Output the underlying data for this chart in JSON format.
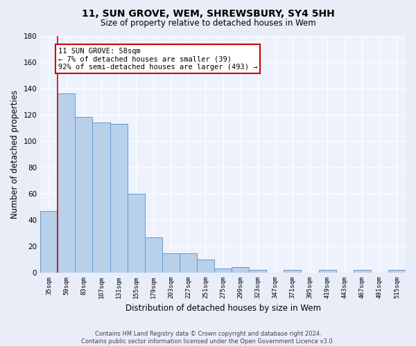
{
  "title1": "11, SUN GROVE, WEM, SHREWSBURY, SY4 5HH",
  "title2": "Size of property relative to detached houses in Wem",
  "xlabel": "Distribution of detached houses by size in Wem",
  "ylabel": "Number of detached properties",
  "bar_values": [
    47,
    136,
    118,
    114,
    113,
    60,
    27,
    15,
    15,
    10,
    3,
    4,
    2,
    0,
    2,
    0,
    2,
    0,
    2,
    0,
    2
  ],
  "categories": [
    "35sqm",
    "59sqm",
    "83sqm",
    "107sqm",
    "131sqm",
    "155sqm",
    "179sqm",
    "203sqm",
    "227sqm",
    "251sqm",
    "275sqm",
    "299sqm",
    "323sqm",
    "347sqm",
    "371sqm",
    "395sqm",
    "419sqm",
    "443sqm",
    "467sqm",
    "491sqm",
    "515sqm"
  ],
  "bar_color": "#b8d0ea",
  "bar_edge_color": "#6699cc",
  "vline_color": "#cc0000",
  "annotation_text": "11 SUN GROVE: 58sqm\n← 7% of detached houses are smaller (39)\n92% of semi-detached houses are larger (493) →",
  "annotation_box_color": "#ffffff",
  "annotation_box_edge_color": "#cc0000",
  "ylim": [
    0,
    180
  ],
  "yticks": [
    0,
    20,
    40,
    60,
    80,
    100,
    120,
    140,
    160,
    180
  ],
  "bg_color": "#e8edf8",
  "plot_bg_color": "#eef2fc",
  "grid_color": "#ffffff",
  "footnote": "Contains HM Land Registry data © Crown copyright and database right 2024.\nContains public sector information licensed under the Open Government Licence v3.0."
}
